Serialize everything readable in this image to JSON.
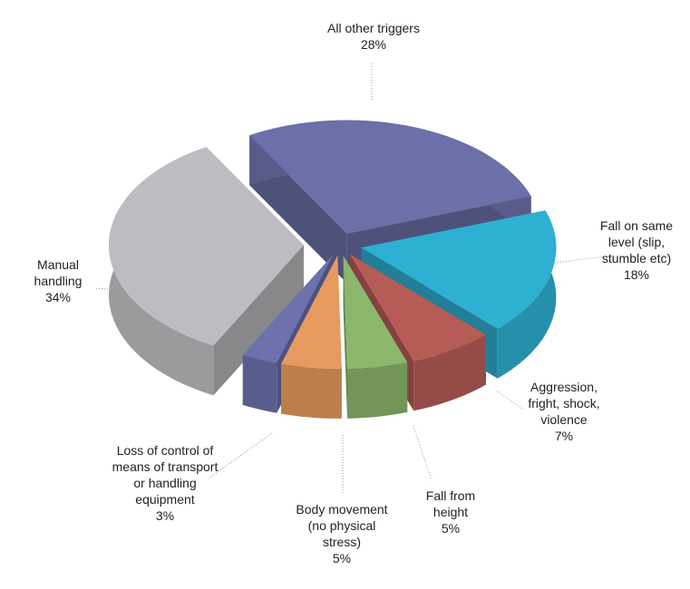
{
  "chart_data": {
    "type": "pie3d",
    "categories": [
      "All other triggers",
      "Fall on same level (slip, stumble etc)",
      "Aggression, fright, shock, violence",
      "Fall from height",
      "Body movement (no physical stress)",
      "Loss of control of means of transport or handling equipment",
      "Manual handling"
    ],
    "values": [
      28,
      18,
      7,
      5,
      5,
      3,
      34
    ],
    "value_labels": [
      "28%",
      "18%",
      "7%",
      "5%",
      "5%",
      "3%",
      "34%"
    ],
    "colors": [
      "#6c70a9",
      "#2eb0d2",
      "#b65c57",
      "#8bb66c",
      "#e69a5f",
      "#6d71ad",
      "#bdbdc1"
    ]
  }
}
